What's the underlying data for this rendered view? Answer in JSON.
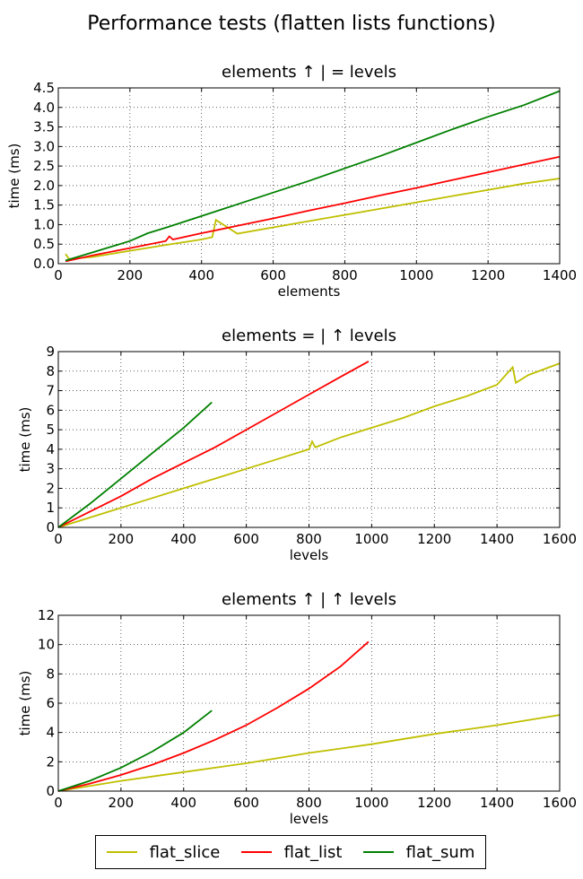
{
  "figure_title": "Performance tests (flatten lists functions)",
  "colors": {
    "flat_slice": "#bfbf00",
    "flat_list": "#ff0000",
    "flat_sum": "#008000"
  },
  "legend": [
    {
      "name": "flat_slice",
      "color": "#bfbf00"
    },
    {
      "name": "flat_list",
      "color": "#ff0000"
    },
    {
      "name": "flat_sum",
      "color": "#008000"
    }
  ],
  "chart_data": [
    {
      "type": "line",
      "title": "elements ↑ | = levels",
      "xlabel": "elements",
      "ylabel": "time (ms)",
      "xlim": [
        0,
        1400
      ],
      "ylim": [
        0,
        4.5
      ],
      "xticks": [
        "0",
        "200",
        "400",
        "600",
        "800",
        "1000",
        "1200",
        "1400"
      ],
      "yticks": [
        "0.0",
        "0.5",
        "1.0",
        "1.5",
        "2.0",
        "2.5",
        "3.0",
        "3.5",
        "4.0",
        "4.5"
      ],
      "grid": true,
      "series": [
        {
          "name": "flat_slice",
          "x": [
            20,
            30,
            100,
            200,
            300,
            400,
            430,
            440,
            500,
            600,
            700,
            800,
            900,
            1000,
            1100,
            1200,
            1300,
            1400
          ],
          "y": [
            0.25,
            0.12,
            0.18,
            0.33,
            0.48,
            0.62,
            0.68,
            1.12,
            0.77,
            0.93,
            1.09,
            1.25,
            1.41,
            1.57,
            1.73,
            1.89,
            2.05,
            2.18
          ]
        },
        {
          "name": "flat_list",
          "x": [
            20,
            100,
            200,
            300,
            310,
            320,
            400,
            500,
            600,
            700,
            800,
            900,
            1000,
            1100,
            1200,
            1300,
            1400
          ],
          "y": [
            0.06,
            0.22,
            0.4,
            0.58,
            0.7,
            0.62,
            0.78,
            0.97,
            1.16,
            1.36,
            1.55,
            1.75,
            1.94,
            2.14,
            2.34,
            2.54,
            2.74
          ]
        },
        {
          "name": "flat_sum",
          "x": [
            20,
            100,
            200,
            250,
            300,
            400,
            500,
            600,
            700,
            800,
            900,
            1000,
            1100,
            1200,
            1300,
            1400
          ],
          "y": [
            0.08,
            0.3,
            0.58,
            0.78,
            0.92,
            1.22,
            1.52,
            1.82,
            2.12,
            2.44,
            2.76,
            3.1,
            3.44,
            3.76,
            4.06,
            4.42
          ]
        }
      ]
    },
    {
      "type": "line",
      "title": "elements = | ↑ levels",
      "xlabel": "levels",
      "ylabel": "time (ms)",
      "xlim": [
        0,
        1600
      ],
      "ylim": [
        0,
        9
      ],
      "xticks": [
        "0",
        "200",
        "400",
        "600",
        "800",
        "1000",
        "1200",
        "1400",
        "1600"
      ],
      "yticks": [
        "0",
        "1",
        "2",
        "3",
        "4",
        "5",
        "6",
        "7",
        "8",
        "9"
      ],
      "grid": true,
      "series": [
        {
          "name": "flat_slice",
          "x": [
            0,
            100,
            200,
            300,
            400,
            500,
            600,
            700,
            800,
            810,
            820,
            900,
            1000,
            1100,
            1200,
            1300,
            1400,
            1450,
            1460,
            1500,
            1600
          ],
          "y": [
            0,
            0.5,
            1.0,
            1.5,
            2.0,
            2.5,
            3.0,
            3.5,
            4.0,
            4.4,
            4.1,
            4.6,
            5.1,
            5.6,
            6.2,
            6.7,
            7.3,
            8.2,
            7.4,
            7.8,
            8.4
          ]
        },
        {
          "name": "flat_list",
          "x": [
            0,
            100,
            200,
            300,
            400,
            500,
            600,
            700,
            800,
            900,
            990
          ],
          "y": [
            0,
            0.8,
            1.6,
            2.5,
            3.3,
            4.1,
            5.0,
            5.9,
            6.8,
            7.7,
            8.5
          ]
        },
        {
          "name": "flat_sum",
          "x": [
            0,
            100,
            200,
            300,
            400,
            490
          ],
          "y": [
            0,
            1.2,
            2.5,
            3.8,
            5.1,
            6.4
          ]
        }
      ]
    },
    {
      "type": "line",
      "title": "elements ↑ | ↑ levels",
      "xlabel": "levels",
      "ylabel": "time (ms)",
      "xlim": [
        0,
        1600
      ],
      "ylim": [
        0,
        12
      ],
      "xticks": [
        "0",
        "200",
        "400",
        "600",
        "800",
        "1000",
        "1200",
        "1400",
        "1600"
      ],
      "yticks": [
        "0",
        "2",
        "4",
        "6",
        "8",
        "10",
        "12"
      ],
      "grid": true,
      "series": [
        {
          "name": "flat_slice",
          "x": [
            0,
            200,
            400,
            600,
            800,
            1000,
            1200,
            1400,
            1600
          ],
          "y": [
            0,
            0.7,
            1.3,
            1.9,
            2.6,
            3.2,
            3.9,
            4.5,
            5.2
          ]
        },
        {
          "name": "flat_list",
          "x": [
            0,
            100,
            200,
            300,
            400,
            500,
            600,
            700,
            800,
            900,
            990
          ],
          "y": [
            0,
            0.5,
            1.1,
            1.8,
            2.6,
            3.5,
            4.5,
            5.7,
            7.0,
            8.5,
            10.2
          ]
        },
        {
          "name": "flat_sum",
          "x": [
            0,
            100,
            200,
            300,
            400,
            490
          ],
          "y": [
            0,
            0.7,
            1.6,
            2.7,
            4.0,
            5.5
          ]
        }
      ]
    }
  ]
}
